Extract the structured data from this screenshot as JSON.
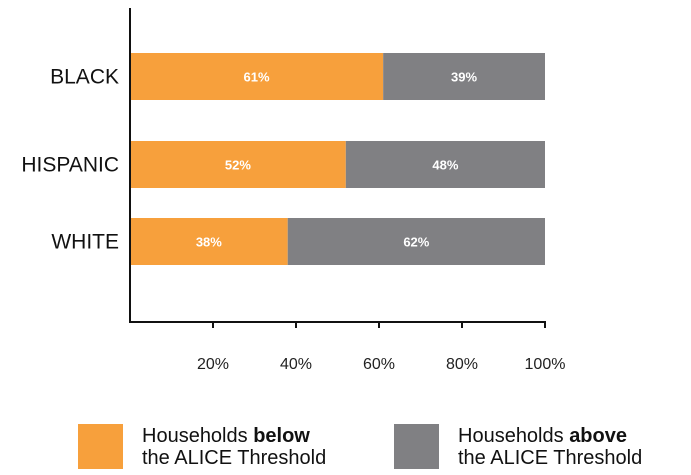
{
  "chart_data": {
    "type": "bar",
    "orientation": "horizontal",
    "stacked": true,
    "categories": [
      "BLACK",
      "HISPANIC",
      "WHITE"
    ],
    "series": [
      {
        "name": "Households below the ALICE Threshold",
        "values": [
          61,
          52,
          38
        ],
        "labels": [
          "61%",
          "52%",
          "38%"
        ],
        "color": "#F7A03C"
      },
      {
        "name": "Households above the ALICE Threshold",
        "values": [
          39,
          48,
          62
        ],
        "labels": [
          "39%",
          "48%",
          "62%"
        ],
        "color": "#808083"
      }
    ],
    "xlim": [
      0,
      100
    ],
    "xticks": [
      20,
      40,
      60,
      80,
      100
    ],
    "xtick_labels": [
      "20%",
      "40%",
      "60%",
      "80%",
      "100%"
    ],
    "grid": false,
    "legend_position": "bottom"
  },
  "legend": {
    "below": {
      "prefix": "Households ",
      "bold": "below",
      "line2": "the ALICE Threshold",
      "color": "#F7A03C"
    },
    "above": {
      "prefix": "Households ",
      "bold": "above",
      "line2": "the ALICE Threshold",
      "color": "#808083"
    }
  }
}
